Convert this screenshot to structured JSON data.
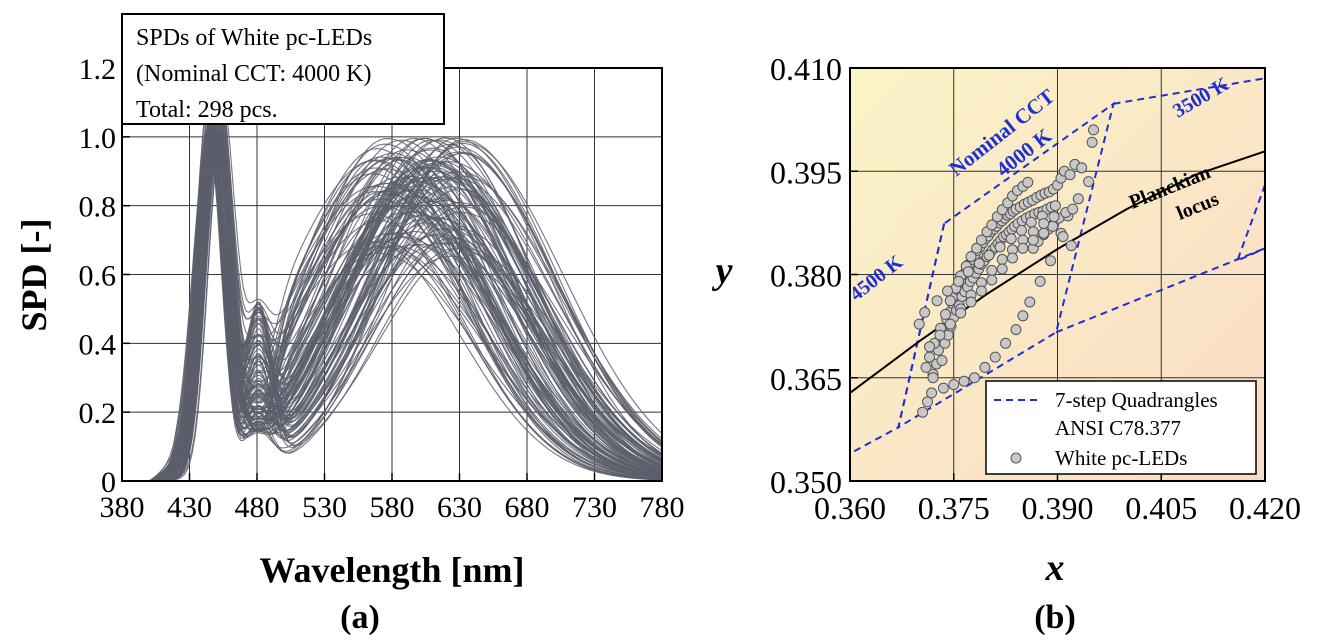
{
  "chart_data": [
    {
      "type": "line",
      "panel_label": "(a)",
      "xlabel": "Wavelength [nm]",
      "ylabel": "SPD [-]",
      "xlim": [
        380,
        780
      ],
      "ylim": [
        0,
        1.2
      ],
      "x_ticks": [
        380,
        430,
        480,
        530,
        580,
        630,
        680,
        730,
        780
      ],
      "x_tick_labels": [
        "380",
        "430",
        "480",
        "530",
        "580",
        "630",
        "680",
        "730",
        "780"
      ],
      "y_ticks": [
        0,
        0.2,
        0.4,
        0.6,
        0.8,
        1.0,
        1.2
      ],
      "y_tick_labels": [
        "0",
        "0.2",
        "0.4",
        "0.6",
        "0.8",
        "1.0",
        "1.2"
      ],
      "grid": true,
      "annotation": [
        "SPDs of White pc-LEDs",
        "(Nominal CCT: 4000 K)",
        "Total: 298 pcs."
      ],
      "line_color": "#5c5f6b",
      "series_profile": {
        "x": [
          380,
          400,
          410,
          420,
          430,
          440,
          447,
          455,
          465,
          475,
          480,
          490,
          500,
          520,
          540,
          560,
          580,
          600,
          620,
          640,
          660,
          680,
          700,
          720,
          740,
          760,
          780
        ],
        "blue_peak_range": [
          0.95,
          1.0
        ],
        "valley_at_480_range": [
          0.14,
          0.53
        ],
        "phosphor_peak_range": [
          0.63,
          1.0
        ],
        "phosphor_peak_wavelength_range": [
          565,
          635
        ],
        "value_at_780_range": [
          0.01,
          0.04
        ]
      }
    },
    {
      "type": "scatter",
      "panel_label": "(b)",
      "xlabel": "x",
      "ylabel": "y",
      "xlim": [
        0.36,
        0.42
      ],
      "ylim": [
        0.35,
        0.41
      ],
      "x_ticks": [
        0.36,
        0.375,
        0.39,
        0.405,
        0.42
      ],
      "x_tick_labels": [
        "0.360",
        "0.375",
        "0.390",
        "0.405",
        "0.420"
      ],
      "y_ticks": [
        0.35,
        0.365,
        0.38,
        0.395,
        0.41
      ],
      "y_tick_labels": [
        "0.350",
        "0.365",
        "0.380",
        "0.395",
        "0.410"
      ],
      "grid": true,
      "background_gradient": [
        "#fbf3c6",
        "#f9dcc5"
      ],
      "legend": {
        "placement": "bottom-right",
        "entries": [
          "7-step Quadrangles",
          "ANSI C78.377",
          "White pc-LEDs"
        ]
      },
      "planckian_locus": {
        "label": [
          "Planckian",
          "locus"
        ],
        "color": "#000000",
        "x": [
          0.36,
          0.37,
          0.38,
          0.39,
          0.4,
          0.41,
          0.42
        ],
        "y": [
          0.3628,
          0.3703,
          0.3773,
          0.3837,
          0.3895,
          0.3945,
          0.3979
        ]
      },
      "quadrangles": [
        {
          "label": "Nominal CCT 4000 K",
          "color": "#1f2fd6",
          "x": [
            0.3736,
            0.367,
            0.3898,
            0.3981,
            0.3736
          ],
          "y": [
            0.3874,
            0.3578,
            0.3716,
            0.4048,
            0.3874
          ]
        },
        {
          "label": "4500 K",
          "color": "#1f2fd6",
          "x": [
            0.3736,
            0.367,
            0.36,
            0.36
          ],
          "y": [
            0.3874,
            0.3578,
            0.354,
            0.3796
          ]
        },
        {
          "label": "3500 K",
          "color": "#1f2fd6",
          "x": [
            0.3981,
            0.42
          ],
          "y": [
            0.4048,
            0.4085
          ]
        },
        {
          "label": "",
          "color": "#1f2fd6",
          "x": [
            0.3898,
            0.42
          ],
          "y": [
            0.3716,
            0.3838
          ]
        },
        {
          "label": "",
          "color": "#1f2fd6",
          "x": [
            0.42,
            0.416,
            0.42
          ],
          "y": [
            0.393,
            0.382,
            0.3838
          ]
        }
      ],
      "points_series": {
        "name": "White pc-LEDs",
        "fill": "#c8c8c8",
        "stroke": "#555555",
        "x": [
          0.3705,
          0.3712,
          0.3718,
          0.372,
          0.3725,
          0.3728,
          0.373,
          0.3733,
          0.3735,
          0.3737,
          0.374,
          0.3742,
          0.3744,
          0.3746,
          0.3748,
          0.375,
          0.3752,
          0.3754,
          0.3756,
          0.3758,
          0.376,
          0.3762,
          0.3764,
          0.3766,
          0.3768,
          0.377,
          0.3772,
          0.3774,
          0.3776,
          0.3778,
          0.378,
          0.3782,
          0.3784,
          0.3786,
          0.3788,
          0.379,
          0.3792,
          0.3794,
          0.3796,
          0.3798,
          0.38,
          0.3802,
          0.3804,
          0.3806,
          0.3808,
          0.381,
          0.3812,
          0.3814,
          0.3816,
          0.3818,
          0.382,
          0.3822,
          0.3824,
          0.3826,
          0.3828,
          0.383,
          0.3832,
          0.3834,
          0.3836,
          0.3838,
          0.384,
          0.3843,
          0.3846,
          0.3849,
          0.3852,
          0.3855,
          0.3858,
          0.3861,
          0.3864,
          0.3867,
          0.387,
          0.3873,
          0.3876,
          0.3879,
          0.3882,
          0.3885,
          0.3888,
          0.3891,
          0.3894,
          0.3897,
          0.39,
          0.3905,
          0.391,
          0.3918,
          0.3925,
          0.3935,
          0.395,
          0.3952,
          0.3945,
          0.393,
          0.3915,
          0.3905,
          0.389,
          0.3875,
          0.386,
          0.385,
          0.384,
          0.3825,
          0.381,
          0.3795,
          0.378,
          0.3765,
          0.375,
          0.3735,
          0.372,
          0.371,
          0.3715,
          0.3722,
          0.3731,
          0.3738,
          0.3745,
          0.3753,
          0.376,
          0.3768,
          0.3775,
          0.3783,
          0.379,
          0.3798,
          0.3805,
          0.3813,
          0.382,
          0.3828,
          0.3835,
          0.3842,
          0.385,
          0.3857,
          0.3865,
          0.3872,
          0.388,
          0.3887,
          0.3895,
          0.3902,
          0.3912,
          0.3922,
          0.37,
          0.3708,
          0.3726,
          0.3741,
          0.3757,
          0.3771,
          0.3787,
          0.3801,
          0.3817,
          0.3833,
          0.3848,
          0.3862,
          0.3878,
          0.3893,
          0.3908,
          0.392,
          0.376,
          0.3775,
          0.379,
          0.3805,
          0.382,
          0.3835,
          0.385,
          0.3865,
          0.388,
          0.3895,
          0.3715,
          0.373,
          0.3745,
          0.376,
          0.3775,
          0.379,
          0.3805,
          0.382,
          0.3835,
          0.385,
          0.3865,
          0.388
        ],
        "y": [
          0.36,
          0.3615,
          0.3628,
          0.3655,
          0.367,
          0.369,
          0.3705,
          0.3675,
          0.372,
          0.37,
          0.3735,
          0.3712,
          0.3745,
          0.3725,
          0.3758,
          0.3738,
          0.377,
          0.3748,
          0.3778,
          0.3755,
          0.379,
          0.3768,
          0.38,
          0.3775,
          0.3805,
          0.3782,
          0.3815,
          0.379,
          0.3822,
          0.3795,
          0.3828,
          0.3802,
          0.3835,
          0.3808,
          0.384,
          0.3815,
          0.3846,
          0.382,
          0.3852,
          0.3826,
          0.3856,
          0.383,
          0.3862,
          0.3836,
          0.3866,
          0.384,
          0.387,
          0.3845,
          0.3875,
          0.385,
          0.3878,
          0.3855,
          0.3882,
          0.3858,
          0.3886,
          0.3862,
          0.3888,
          0.3866,
          0.3892,
          0.387,
          0.3895,
          0.3874,
          0.3898,
          0.3878,
          0.3902,
          0.3882,
          0.3905,
          0.3885,
          0.3908,
          0.3888,
          0.3912,
          0.389,
          0.3915,
          0.3892,
          0.3918,
          0.3895,
          0.392,
          0.3898,
          0.3924,
          0.39,
          0.393,
          0.394,
          0.395,
          0.3945,
          0.396,
          0.3955,
          0.3992,
          0.401,
          0.3935,
          0.391,
          0.3885,
          0.386,
          0.382,
          0.379,
          0.376,
          0.374,
          0.372,
          0.37,
          0.368,
          0.3665,
          0.365,
          0.3645,
          0.364,
          0.3635,
          0.365,
          0.3665,
          0.368,
          0.37,
          0.3722,
          0.3742,
          0.3762,
          0.378,
          0.3798,
          0.3812,
          0.3826,
          0.3838,
          0.385,
          0.3862,
          0.3872,
          0.3884,
          0.3894,
          0.3904,
          0.3914,
          0.3922,
          0.3928,
          0.3934,
          0.3838,
          0.3848,
          0.3858,
          0.3866,
          0.3874,
          0.3882,
          0.389,
          0.3895,
          0.3728,
          0.3745,
          0.3762,
          0.3776,
          0.379,
          0.3804,
          0.3816,
          0.3828,
          0.384,
          0.3852,
          0.3864,
          0.3876,
          0.3885,
          0.387,
          0.3855,
          0.3842,
          0.375,
          0.377,
          0.3788,
          0.3806,
          0.3822,
          0.3836,
          0.385,
          0.3862,
          0.3874,
          0.3884,
          0.3695,
          0.3712,
          0.3728,
          0.3744,
          0.376,
          0.3776,
          0.3792,
          0.3808,
          0.3824,
          0.3838,
          0.385,
          0.386
        ]
      },
      "annotations": [
        "Nominal CCT",
        "4000 K",
        "4500 K",
        "3500 K"
      ]
    }
  ]
}
